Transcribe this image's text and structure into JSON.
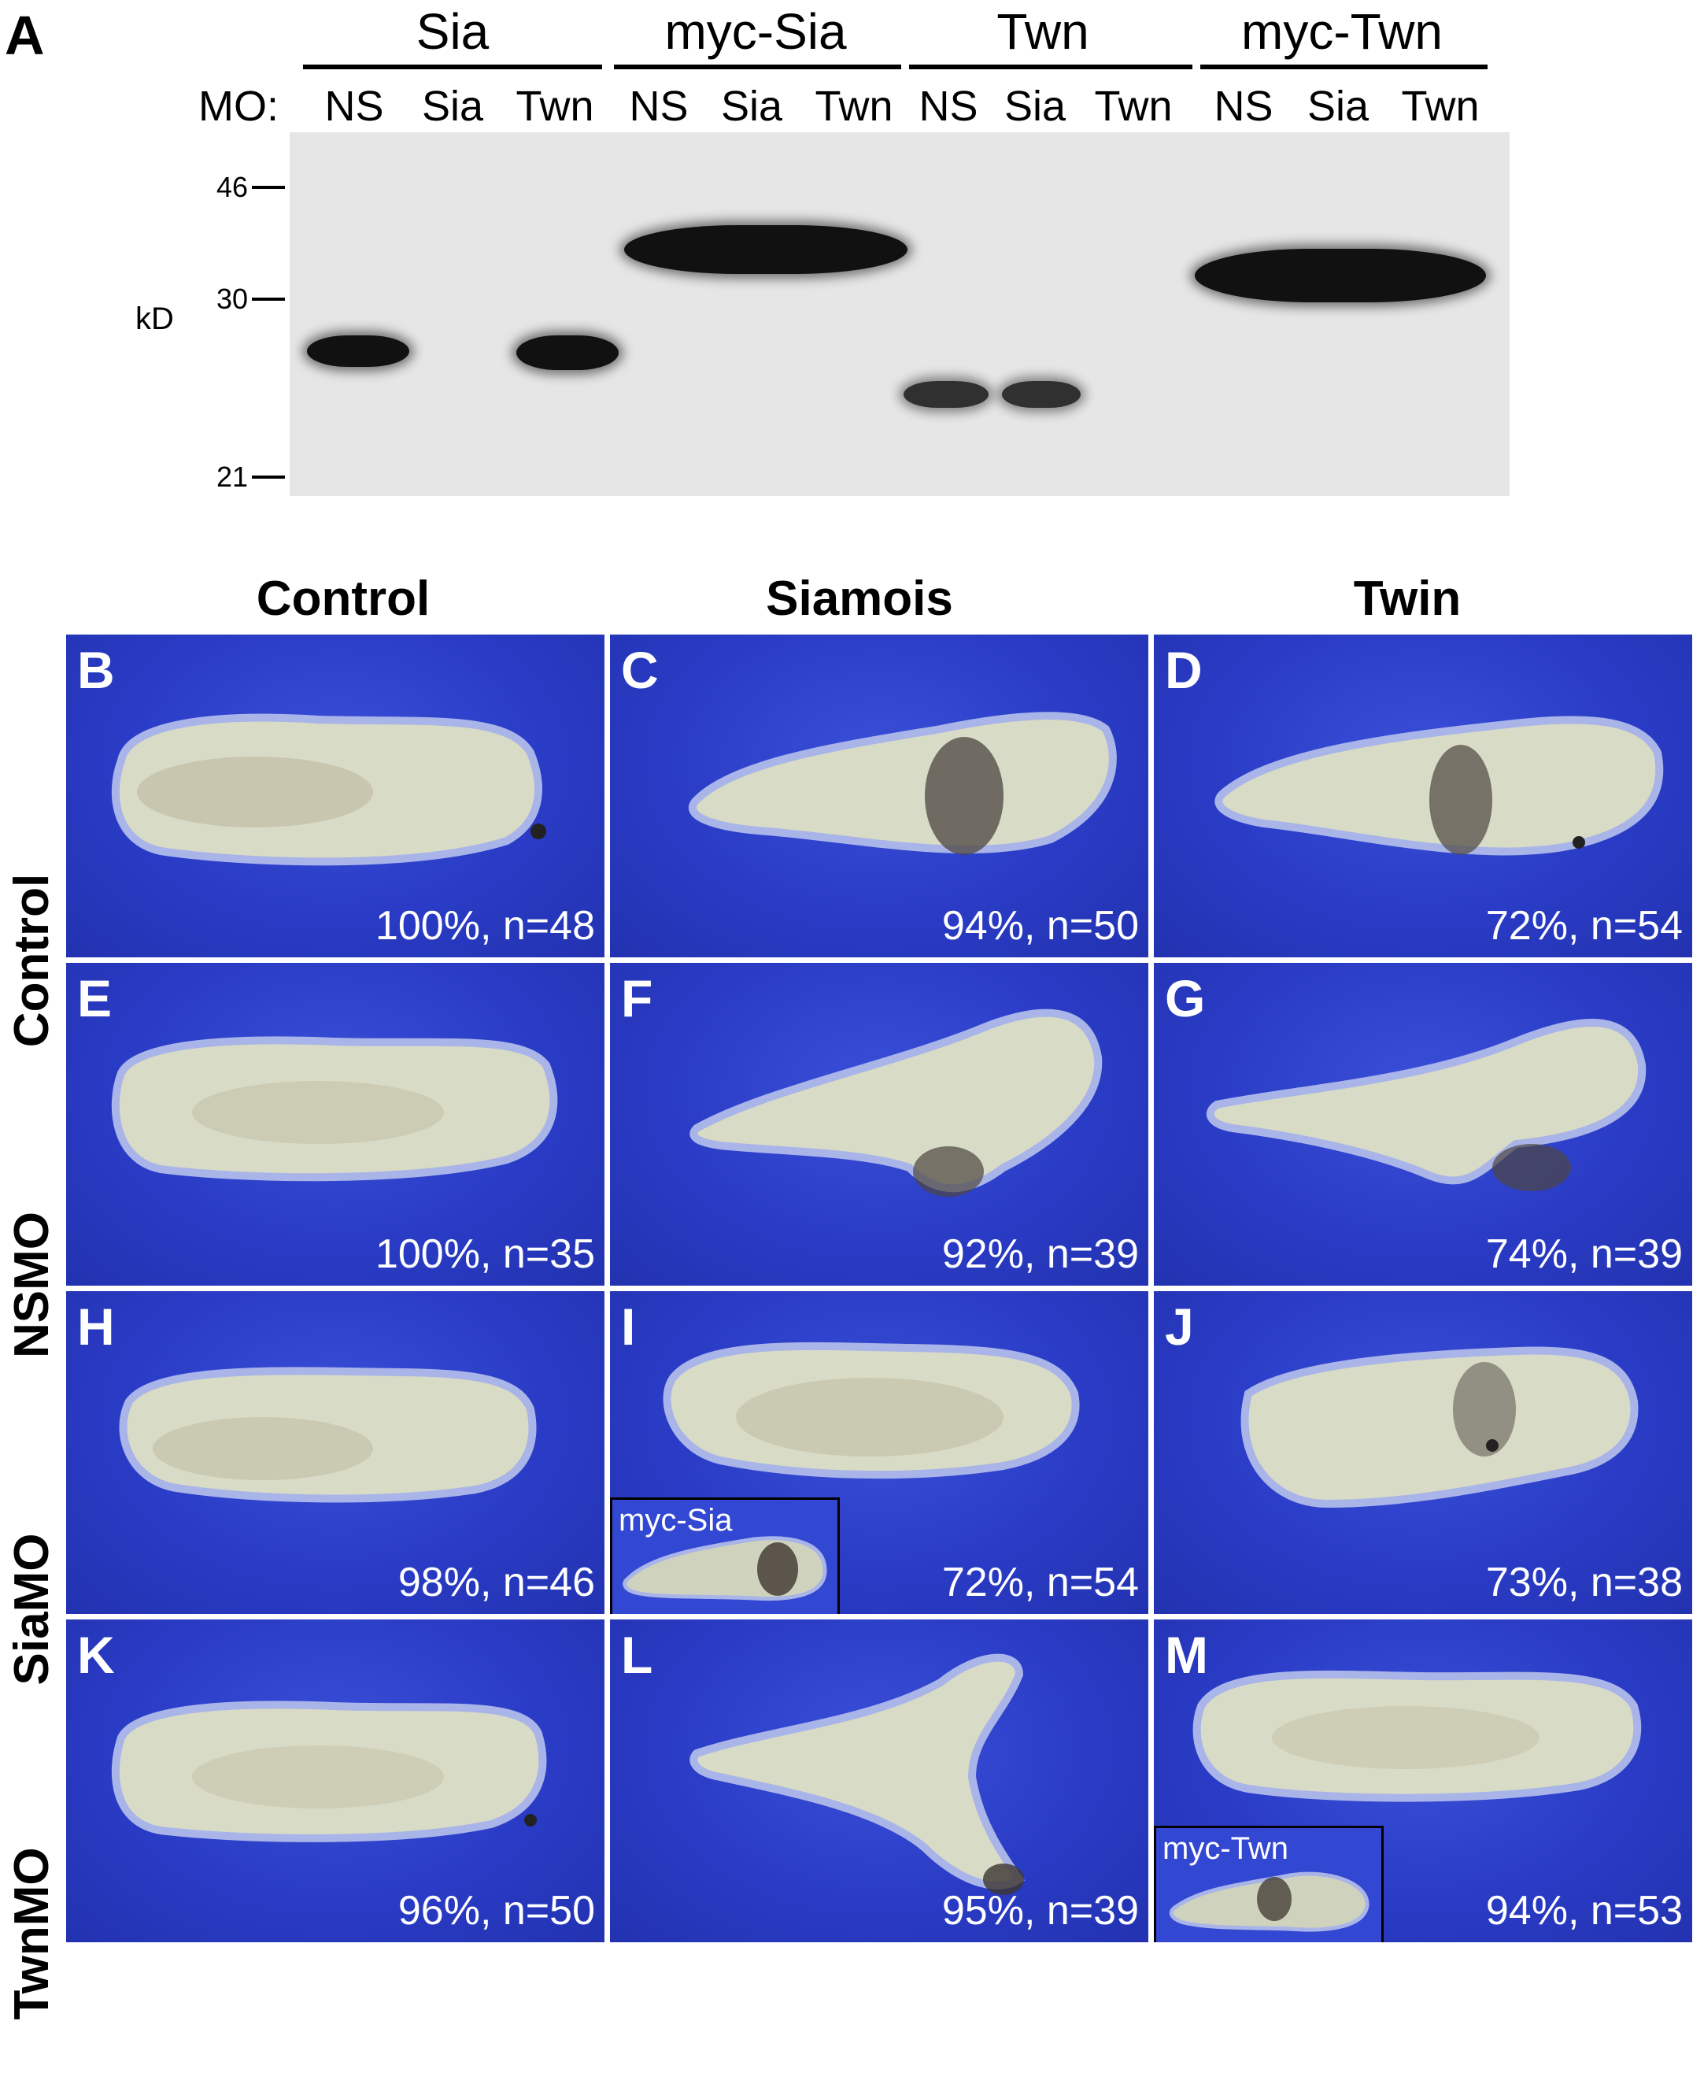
{
  "panelA": {
    "letter": "A",
    "groups": [
      "Sia",
      "myc-Sia",
      "Twn",
      "myc-Twn"
    ],
    "mo_label": "MO:",
    "lanes": [
      "NS",
      "Sia",
      "Twn",
      "NS",
      "Sia",
      "Twn",
      "NS",
      "Sia",
      "Twn",
      "NS",
      "Sia",
      "Twn"
    ],
    "markers": [
      "46",
      "30",
      "21"
    ],
    "unit": "kD"
  },
  "grid": {
    "columns": [
      "Control",
      "Siamois",
      "Twin"
    ],
    "rows": [
      "Control",
      "NSMO",
      "SiaMO",
      "TwnMO"
    ],
    "cells": [
      {
        "letter": "B",
        "stat": "100%, n=48"
      },
      {
        "letter": "C",
        "stat": "94%, n=50"
      },
      {
        "letter": "D",
        "stat": "72%, n=54"
      },
      {
        "letter": "E",
        "stat": "100%, n=35"
      },
      {
        "letter": "F",
        "stat": "92%, n=39"
      },
      {
        "letter": "G",
        "stat": "74%, n=39"
      },
      {
        "letter": "H",
        "stat": "98%, n=46"
      },
      {
        "letter": "I",
        "stat": "72%, n=54"
      },
      {
        "letter": "J",
        "stat": "73%, n=38"
      },
      {
        "letter": "K",
        "stat": "96%, n=50"
      },
      {
        "letter": "L",
        "stat": "95%, n=39"
      },
      {
        "letter": "M",
        "stat": "94%, n=53"
      }
    ],
    "insets": {
      "I": "myc-Sia",
      "M": "myc-Twn"
    }
  },
  "colors": {
    "background_blue": "#2a3cc6",
    "embryo": "#d9dcc8",
    "band": "#111111"
  }
}
